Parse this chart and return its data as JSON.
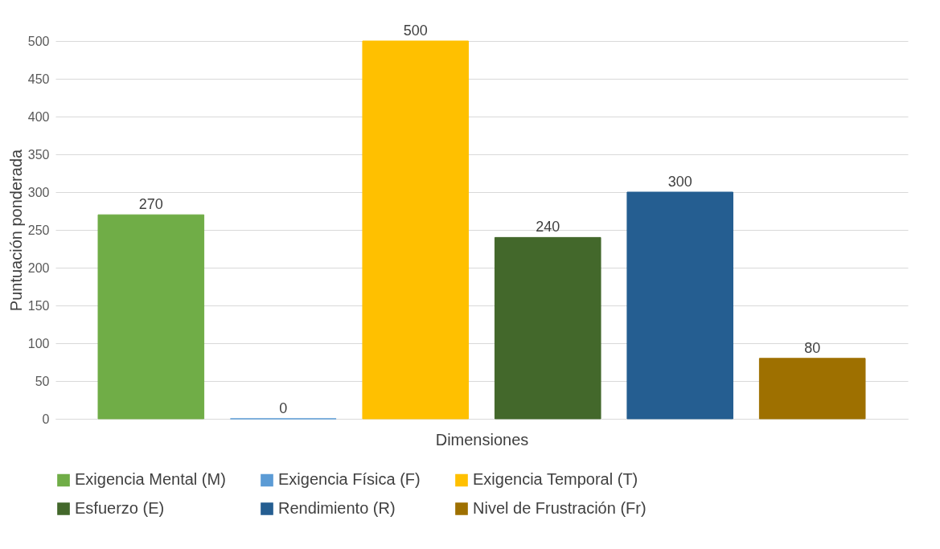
{
  "chart_data": {
    "type": "bar",
    "xlabel": "Dimensiones",
    "ylabel": "Puntuación ponderada",
    "categories": [
      null
    ],
    "series": [
      {
        "name": "Exigencia Mental (M)",
        "color": "#70ad47",
        "values": [
          270
        ]
      },
      {
        "name": "Exigencia Física (F)",
        "color": "#5b9bd5",
        "values": [
          0
        ]
      },
      {
        "name": "Exigencia Temporal (T)",
        "color": "#ffc000",
        "values": [
          500
        ]
      },
      {
        "name": "Esfuerzo (E)",
        "color": "#43682b",
        "values": [
          240
        ]
      },
      {
        "name": "Rendimiento (R)",
        "color": "#255e91",
        "values": [
          300
        ]
      },
      {
        "name": "Nivel de Frustración (Fr)",
        "color": "#9e7000",
        "values": [
          80
        ]
      }
    ],
    "ylim": [
      0,
      500
    ],
    "yticks": [
      0,
      50,
      100,
      150,
      200,
      250,
      300,
      350,
      400,
      450,
      500
    ],
    "grid": "y",
    "legend": "bottom",
    "data_labels": true
  }
}
